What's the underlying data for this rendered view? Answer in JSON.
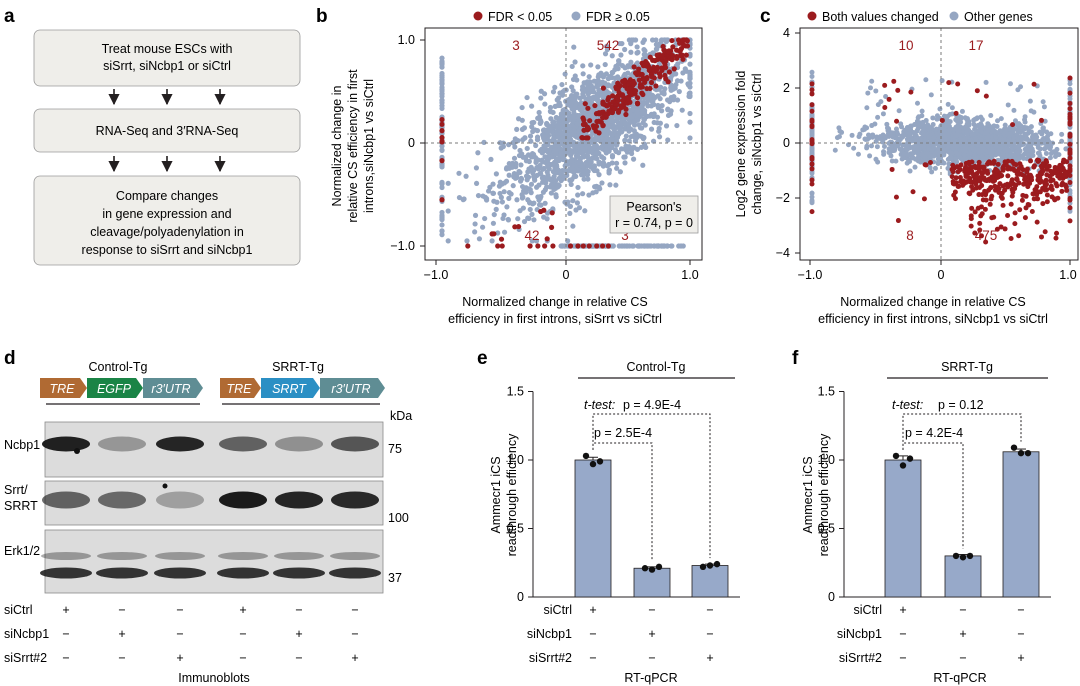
{
  "colors": {
    "fdr_sig": "#9b1b1e",
    "fdr_ns": "#95a6c2",
    "bar_fill": "#97a9c9",
    "flow_box": "#efeeea",
    "tre": "#b06a33",
    "egfp": "#1a8446",
    "srrt": "#2b8fc4",
    "utr": "#5f8d94"
  },
  "panel_a": {
    "label": "a",
    "steps": [
      [
        "Treat mouse ESCs with",
        "siSrrt, siNcbp1 or siCtrl"
      ],
      [
        "RNA-Seq and 3′RNA-Seq"
      ],
      [
        "Compare changes",
        "in gene expression and",
        "cleavage/polyadenylation in",
        "response to siSrrt and siNcbp1"
      ]
    ]
  },
  "panel_b": {
    "label": "b",
    "legend": [
      "FDR < 0.05",
      "FDR ≥ 0.05"
    ],
    "ylabel": [
      "Normalized change in",
      "relative CS efficiency in first",
      "introns,siNcbp1 vs siCtrl"
    ],
    "xlabel": [
      "Normalized change in relative CS",
      "efficiency in first introns, siSrrt vs siCtrl"
    ],
    "yticks": [
      "1.0",
      "0",
      "−1.0"
    ],
    "xticks": [
      "−1.0",
      "0",
      "1.0"
    ],
    "quadrant_counts": [
      "3",
      "542",
      "42",
      "3"
    ],
    "stats_box": [
      "Pearson's",
      "r = 0.74, p = 0"
    ]
  },
  "panel_c": {
    "label": "c",
    "legend": [
      "Both values changed",
      "Other genes"
    ],
    "ylabel": [
      "Log2 gene expression fold",
      "change, siNcbp1 vs siCtrl"
    ],
    "xlabel": [
      "Normalized change in relative CS",
      "efficiency in first introns, siNcbp1 vs siCtrl"
    ],
    "yticks": [
      "4",
      "2",
      "0",
      "−2",
      "−4"
    ],
    "xticks": [
      "−1.0",
      "0",
      "1.0"
    ],
    "quadrant_counts": [
      "10",
      "17",
      "8",
      "475"
    ]
  },
  "panel_d": {
    "label": "d",
    "groups": [
      "Control-Tg",
      "SRRT-Tg"
    ],
    "construct_control": [
      "TRE",
      "EGFP",
      "r3′UTR"
    ],
    "construct_srrt": [
      "TRE",
      "SRRT",
      "r3′UTR"
    ],
    "kda_label": "kDa",
    "blots": [
      {
        "name": "Ncbp1",
        "marker": "75"
      },
      {
        "name": "Srrt/\nSRRT",
        "marker": "100"
      },
      {
        "name": "Erk1/2",
        "marker": "37"
      }
    ],
    "conditions": [
      "siCtrl",
      "siNcbp1",
      "siSrrt#2"
    ],
    "pattern": [
      [
        "+",
        "−",
        "−",
        "+",
        "−",
        "−"
      ],
      [
        "−",
        "+",
        "−",
        "−",
        "+",
        "−"
      ],
      [
        "−",
        "−",
        "+",
        "−",
        "−",
        "+"
      ]
    ],
    "footer": "Immunoblots"
  },
  "panel_e": {
    "label": "e",
    "group": "Control-Tg",
    "ylabel": [
      "Ammecr1 iCS",
      "readthrough efficiency"
    ],
    "yticks": [
      "1.5",
      "1.0",
      "0.5",
      "0"
    ],
    "ttest_label": "t-test:",
    "p_values": [
      "p = 4.9E-4",
      "p = 2.5E-4"
    ],
    "conditions": [
      "siCtrl",
      "siNcbp1",
      "siSrrt#2"
    ],
    "pattern": [
      [
        "+",
        "−",
        "−"
      ],
      [
        "−",
        "+",
        "−"
      ],
      [
        "−",
        "−",
        "+"
      ]
    ],
    "footer": "RT-qPCR"
  },
  "panel_f": {
    "label": "f",
    "group": "SRRT-Tg",
    "ylabel": [
      "Ammecr1 iCS",
      "readthrough efficiency"
    ],
    "yticks": [
      "1.5",
      "1.0",
      "0.5",
      "0"
    ],
    "ttest_label": "t-test:",
    "p_values": [
      "p = 0.12",
      "p = 4.2E-4"
    ],
    "conditions": [
      "siCtrl",
      "siNcbp1",
      "siSrrt#2"
    ],
    "pattern": [
      [
        "+",
        "−",
        "−"
      ],
      [
        "−",
        "+",
        "−"
      ],
      [
        "−",
        "−",
        "+"
      ]
    ],
    "footer": "RT-qPCR"
  },
  "chart_data": [
    {
      "panel": "b",
      "type": "scatter",
      "xlabel": "Normalized change in relative CS efficiency in first introns, siSrrt vs siCtrl",
      "ylabel": "Normalized change in relative CS efficiency in first introns,siNcbp1 vs siCtrl",
      "xlim": [
        -1.05,
        1.08
      ],
      "ylim": [
        -1.05,
        1.05
      ],
      "series": [
        {
          "name": "FDR < 0.05",
          "role": "significant",
          "summary": "mostly along diagonal 0.1–1.0 plus points on y = −1"
        },
        {
          "name": "FDR ≥ 0.05",
          "role": "other",
          "summary": "dense cloud, r = 0.74"
        }
      ]
    },
    {
      "panel": "c",
      "type": "scatter",
      "xlabel": "Normalized change in relative CS efficiency in first introns, siNcbp1 vs siCtrl",
      "ylabel": "Log2 gene expression fold change, siNcbp1 vs siCtrl",
      "xlim": [
        -1.05,
        1.05
      ],
      "ylim": [
        -4,
        4
      ],
      "series": [
        {
          "name": "Both values changed",
          "role": "significant",
          "summary": "mostly x 0.1–1.0, y −0.5 to −3.5"
        },
        {
          "name": "Other genes",
          "role": "other",
          "summary": "dense band around y = 0"
        }
      ]
    },
    {
      "panel": "e",
      "type": "bar",
      "categories": [
        "siCtrl",
        "siNcbp1",
        "siSrrt#2"
      ],
      "values": [
        1.0,
        0.21,
        0.23
      ],
      "errors": [
        0.02,
        0.01,
        0.01
      ],
      "points": [
        [
          1.03,
          0.97,
          0.99
        ],
        [
          0.21,
          0.2,
          0.22
        ],
        [
          0.22,
          0.23,
          0.24
        ]
      ],
      "ylim": [
        0,
        1.5
      ]
    },
    {
      "panel": "f",
      "type": "bar",
      "categories": [
        "siCtrl",
        "siNcbp1",
        "siSrrt#2"
      ],
      "values": [
        1.0,
        0.3,
        1.06
      ],
      "errors": [
        0.03,
        0.01,
        0.02
      ],
      "points": [
        [
          1.03,
          0.96,
          1.01
        ],
        [
          0.3,
          0.29,
          0.3
        ],
        [
          1.09,
          1.05,
          1.05
        ]
      ],
      "ylim": [
        0,
        1.5
      ]
    }
  ]
}
